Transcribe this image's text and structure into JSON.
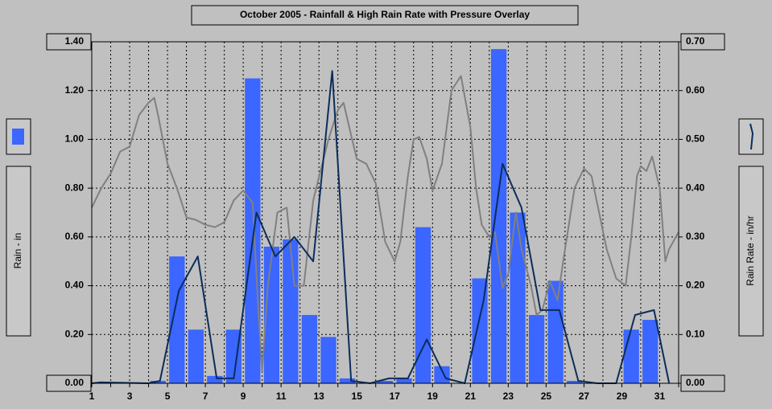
{
  "chart_data": {
    "type": "bar-line",
    "title": "October 2005 - Rainfall & High Rain Rate with Pressure Overlay",
    "y_label": "Rain - in",
    "y2_label": "Rain Rate - in/hr",
    "categories": [
      1,
      2,
      3,
      4,
      5,
      6,
      7,
      8,
      9,
      10,
      11,
      12,
      13,
      14,
      15,
      16,
      17,
      18,
      19,
      20,
      21,
      22,
      23,
      24,
      25,
      26,
      27,
      28,
      29,
      30,
      31
    ],
    "values": [
      0,
      0,
      0,
      0.01,
      0.52,
      0.22,
      0.03,
      0.22,
      1.25,
      0.56,
      0.59,
      0.28,
      0.19,
      0.02,
      0,
      0.01,
      0.02,
      0.64,
      0.07,
      0,
      0.43,
      1.37,
      0.7,
      0.28,
      0.42,
      0.01,
      0,
      0,
      0.22,
      0.26,
      0
    ],
    "color": "#3b66ff",
    "series": [
      {
        "color": "#0b2d5c",
        "axis": "y2",
        "x": [
          1,
          1.5,
          4,
          4.6,
          5.6,
          6.6,
          7.6,
          8.5,
          9.7,
          10.7,
          11.7,
          12.7,
          13.7,
          14.7,
          15.7,
          16.7,
          17.7,
          18.7,
          19.7,
          20.7,
          21.7,
          22.7,
          23.7,
          24.7,
          25.7,
          26.7,
          27.7,
          28.7,
          29.7,
          30.7,
          31.5
        ],
        "values": [
          0,
          0.002,
          0,
          0.005,
          0.19,
          0.26,
          0.01,
          0.01,
          0.35,
          0.26,
          0.3,
          0.25,
          0.64,
          0.005,
          0,
          0.01,
          0.01,
          0.09,
          0.01,
          0,
          0.17,
          0.45,
          0.36,
          0.15,
          0.15,
          0.005,
          0,
          0,
          0.14,
          0.15,
          0
        ]
      },
      {
        "color": "#808080",
        "axis": "y",
        "x": [
          1,
          1.5,
          2,
          2.5,
          3,
          3.5,
          4,
          4.3,
          4.5,
          5,
          5.5,
          6,
          6.5,
          7,
          7.5,
          8,
          8.5,
          9,
          9.5,
          9.8,
          10,
          10.3,
          10.8,
          11.3,
          11.7,
          12.2,
          12.7,
          13.5,
          14,
          14.3,
          14.6,
          15,
          15.5,
          16,
          16.5,
          17,
          17.3,
          17.7,
          18,
          18.3,
          18.7,
          19,
          19.5,
          20,
          20.5,
          21,
          21.3,
          21.6,
          22,
          22.3,
          22.7,
          23,
          23.4,
          23.7,
          24.2,
          24.5,
          24.8,
          25.2,
          25.6,
          26,
          26.5,
          27,
          27.4,
          27.8,
          28.2,
          28.7,
          29.2,
          29.5,
          29.8,
          30,
          30.3,
          30.6,
          31,
          31.3,
          31.5,
          32
        ],
        "values": [
          0.72,
          0.8,
          0.86,
          0.95,
          0.97,
          1.1,
          1.15,
          1.17,
          1.1,
          0.9,
          0.8,
          0.68,
          0.67,
          0.65,
          0.64,
          0.66,
          0.75,
          0.79,
          0.74,
          0.3,
          0.05,
          0.4,
          0.7,
          0.72,
          0.4,
          0.4,
          0.75,
          1.0,
          1.12,
          1.15,
          1.05,
          0.92,
          0.9,
          0.82,
          0.58,
          0.5,
          0.58,
          0.85,
          1.0,
          1.01,
          0.92,
          0.79,
          0.9,
          1.2,
          1.26,
          1.05,
          0.8,
          0.65,
          0.6,
          0.62,
          0.39,
          0.45,
          0.7,
          0.55,
          0.4,
          0.28,
          0.3,
          0.42,
          0.34,
          0.55,
          0.8,
          0.88,
          0.85,
          0.7,
          0.55,
          0.43,
          0.4,
          0.6,
          0.85,
          0.89,
          0.87,
          0.93,
          0.8,
          0.5,
          0.55,
          0.62
        ]
      }
    ],
    "xlim": [
      1,
      32
    ],
    "xticks": [
      1,
      3,
      5,
      7,
      9,
      11,
      13,
      15,
      17,
      19,
      21,
      23,
      25,
      27,
      29,
      31
    ],
    "x_minor_ticks": [
      2,
      4,
      6,
      8,
      10,
      12,
      14,
      16,
      18,
      20,
      22,
      24,
      26,
      28,
      30,
      32
    ],
    "ylim": [
      0,
      1.4
    ],
    "yticks": [
      {
        "value": 0,
        "label": "0.00"
      },
      {
        "value": 0.2,
        "label": "0.20"
      },
      {
        "value": 0.4,
        "label": "0.40"
      },
      {
        "value": 0.6,
        "label": "0.60"
      },
      {
        "value": 0.8,
        "label": "0.80"
      },
      {
        "value": 1.0,
        "label": "1.00"
      },
      {
        "value": 1.2,
        "label": "1.20"
      },
      {
        "value": 1.4,
        "label": "1.40"
      }
    ],
    "y2lim": [
      0,
      0.7
    ],
    "y2ticks": [
      {
        "value": 0,
        "label": "0.00"
      },
      {
        "value": 0.1,
        "label": "0.10"
      },
      {
        "value": 0.2,
        "label": "0.20"
      },
      {
        "value": 0.3,
        "label": "0.30"
      },
      {
        "value": 0.4,
        "label": "0.40"
      },
      {
        "value": 0.5,
        "label": "0.50"
      },
      {
        "value": 0.6,
        "label": "0.60"
      },
      {
        "value": 0.7,
        "label": "0.70"
      }
    ],
    "grid": true
  }
}
